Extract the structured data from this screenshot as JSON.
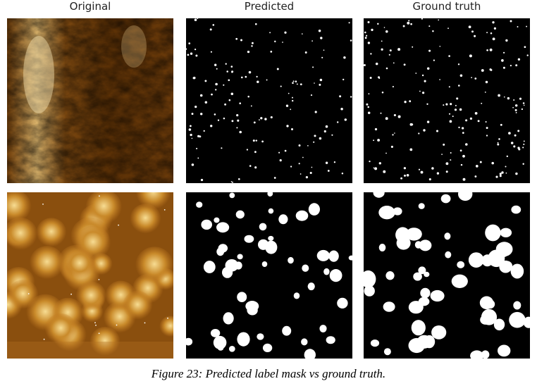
{
  "columns": [
    {
      "label": "Original"
    },
    {
      "label": "Predicted"
    },
    {
      "label": "Ground truth"
    }
  ],
  "rows": [
    {
      "panels": [
        "afm-original-texture",
        "predicted-mask-small-spots",
        "ground-truth-mask-small-spots"
      ]
    },
    {
      "panels": [
        "afm-original-grains",
        "predicted-mask-large-blobs",
        "ground-truth-mask-large-blobs"
      ]
    }
  ],
  "caption": "Figure 23: Predicted label mask vs ground truth.",
  "colors": {
    "mask_background": "#000000",
    "mask_foreground": "#ffffff",
    "afm_dark": "#3a1a00",
    "afm_mid": "#9a5a14",
    "afm_light": "#f3d58a"
  }
}
